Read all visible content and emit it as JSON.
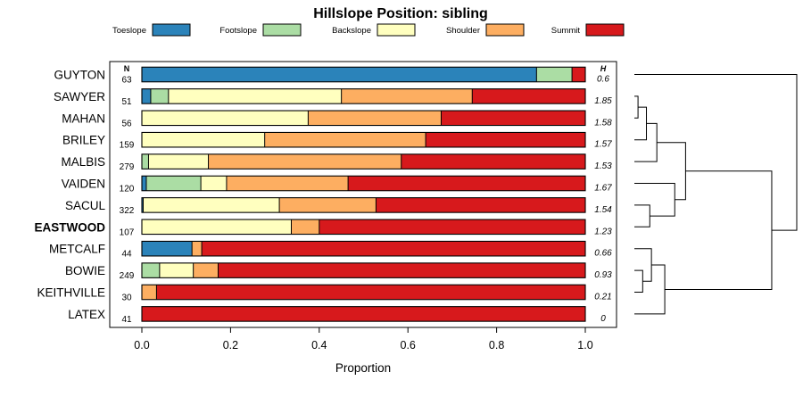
{
  "chart_data": {
    "type": "bar",
    "stacked": true,
    "orientation": "horizontal",
    "title": "Hillslope Position: sibling",
    "xlabel": "Proportion",
    "xlim": [
      0,
      1
    ],
    "x_ticks": [
      "0.0",
      "0.2",
      "0.4",
      "0.6",
      "0.8",
      "1.0"
    ],
    "column_headers": {
      "n": "N",
      "h": "H"
    },
    "legend": [
      {
        "name": "Toeslope",
        "color": "#2b83ba"
      },
      {
        "name": "Footslope",
        "color": "#abdda4"
      },
      {
        "name": "Backslope",
        "color": "#ffffbf"
      },
      {
        "name": "Shoulder",
        "color": "#fdae61"
      },
      {
        "name": "Summit",
        "color": "#d7191c"
      }
    ],
    "rows": [
      {
        "name": "GUYTON",
        "bold": false,
        "n": "63",
        "h": "0.6",
        "values": [
          0.89,
          0.08,
          0.0,
          0.0,
          0.03
        ]
      },
      {
        "name": "SAWYER",
        "bold": false,
        "n": "51",
        "h": "1.85",
        "values": [
          0.02,
          0.04,
          0.39,
          0.295,
          0.255
        ]
      },
      {
        "name": "MAHAN",
        "bold": false,
        "n": "56",
        "h": "1.58",
        "values": [
          0.0,
          0.0,
          0.375,
          0.3,
          0.325
        ]
      },
      {
        "name": "BRILEY",
        "bold": false,
        "n": "159",
        "h": "1.57",
        "values": [
          0.0,
          0.0,
          0.277,
          0.363,
          0.36
        ]
      },
      {
        "name": "MALBIS",
        "bold": false,
        "n": "279",
        "h": "1.53",
        "values": [
          0.0,
          0.015,
          0.135,
          0.435,
          0.415
        ]
      },
      {
        "name": "VAIDEN",
        "bold": false,
        "n": "120",
        "h": "1.67",
        "values": [
          0.01,
          0.123,
          0.058,
          0.274,
          0.535
        ]
      },
      {
        "name": "SACUL",
        "bold": false,
        "n": "322",
        "h": "1.54",
        "values": [
          0.003,
          0.0,
          0.307,
          0.218,
          0.472
        ]
      },
      {
        "name": "EASTWOOD",
        "bold": true,
        "n": "107",
        "h": "1.23",
        "values": [
          0.0,
          0.0,
          0.337,
          0.063,
          0.6
        ]
      },
      {
        "name": "METCALF",
        "bold": false,
        "n": "44",
        "h": "0.66",
        "values": [
          0.113,
          0.0,
          0.0,
          0.022,
          0.865
        ]
      },
      {
        "name": "BOWIE",
        "bold": false,
        "n": "249",
        "h": "0.93",
        "values": [
          0.0,
          0.04,
          0.076,
          0.056,
          0.828
        ]
      },
      {
        "name": "KEITHVILLE",
        "bold": false,
        "n": "30",
        "h": "0.21",
        "values": [
          0.0,
          0.0,
          0.0,
          0.033,
          0.967
        ]
      },
      {
        "name": "LATEX",
        "bold": false,
        "n": "41",
        "h": "0",
        "values": [
          0.0,
          0.0,
          0.0,
          0.0,
          1.0
        ]
      }
    ],
    "dendrogram": {
      "leaf_order": [
        "GUYTON",
        "SAWYER",
        "MAHAN",
        "BRILEY",
        "MALBIS",
        "VAIDEN",
        "SACUL",
        "EASTWOOD",
        "METCALF",
        "BOWIE",
        "KEITHVILLE",
        "LATEX"
      ],
      "merges": [
        {
          "a": 1,
          "b": 2,
          "height": 0.0086
        },
        {
          "a": -1,
          "b": 3,
          "height": 0.0284
        },
        {
          "a": -2,
          "b": 4,
          "height": 0.0529
        },
        {
          "a": 6,
          "b": 7,
          "height": 0.0363
        },
        {
          "a": 5,
          "b": -4,
          "height": 0.0951
        },
        {
          "a": -3,
          "b": -5,
          "height": 0.1206
        },
        {
          "a": 9,
          "b": 10,
          "height": 0.0196
        },
        {
          "a": 8,
          "b": -7,
          "height": 0.0402
        },
        {
          "a": 11,
          "b": -8,
          "height": 0.0716
        },
        {
          "a": -6,
          "b": -9,
          "height": 0.3235
        },
        {
          "a": 0,
          "b": -10,
          "height": 0.3824
        }
      ]
    }
  }
}
